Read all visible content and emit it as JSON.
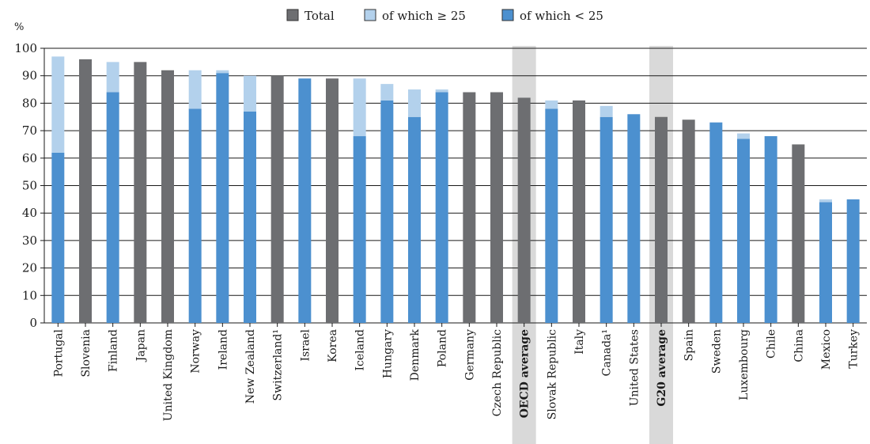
{
  "chart_data": {
    "type": "bar",
    "stacked": true,
    "ylabel": "%",
    "ylim": [
      0,
      100
    ],
    "yticks": [
      0,
      10,
      20,
      30,
      40,
      50,
      60,
      70,
      80,
      90,
      100
    ],
    "grid": true,
    "legend_position": "top",
    "legend": [
      {
        "name": "Total",
        "color": "#6d6e71"
      },
      {
        "name": "of which ≥ 25",
        "color": "#b3d1ec"
      },
      {
        "name": "of which < 25",
        "color": "#4c90cf"
      }
    ],
    "categories": [
      "Portugal",
      "Slovenia",
      "Finland",
      "Japan",
      "United Kingdom",
      "Norway",
      "Ireland",
      "New Zealand",
      "Switzerland¹",
      "Israel",
      "Korea",
      "Iceland",
      "Hungary",
      "Denmark",
      "Poland",
      "Germany",
      "Czech Republic",
      "OECD average",
      "Slovak Republic",
      "Italy",
      "Canada¹",
      "United States",
      "G20 average",
      "Spain",
      "Sweden",
      "Luxembourg",
      "Chile",
      "China",
      "Mexico",
      "Turkey"
    ],
    "highlighted": [
      "OECD average",
      "G20 average"
    ],
    "series": [
      {
        "name": "Total",
        "values": [
          null,
          96,
          null,
          95,
          92,
          null,
          null,
          null,
          90,
          null,
          89,
          null,
          null,
          null,
          null,
          84,
          84,
          82,
          null,
          81,
          null,
          null,
          75,
          74,
          null,
          null,
          null,
          65,
          null,
          null
        ]
      },
      {
        "name": "of which < 25",
        "values": [
          62,
          null,
          84,
          null,
          null,
          78,
          91,
          77,
          null,
          89,
          null,
          68,
          81,
          75,
          84,
          null,
          null,
          null,
          78,
          null,
          75,
          76,
          null,
          null,
          73,
          67,
          68,
          null,
          44,
          45
        ]
      },
      {
        "name": "of which ≥ 25",
        "values": [
          35,
          null,
          11,
          null,
          null,
          14,
          1,
          13,
          null,
          0,
          null,
          21,
          6,
          10,
          1,
          null,
          null,
          null,
          3,
          null,
          4,
          0,
          null,
          null,
          0,
          2,
          0,
          null,
          1,
          0
        ]
      }
    ]
  },
  "colors": {
    "total": "#6d6e71",
    "over25": "#b3d1ec",
    "under25": "#4c90cf",
    "highlight": "#d9d9d9",
    "grid": "#1a1a1a"
  }
}
